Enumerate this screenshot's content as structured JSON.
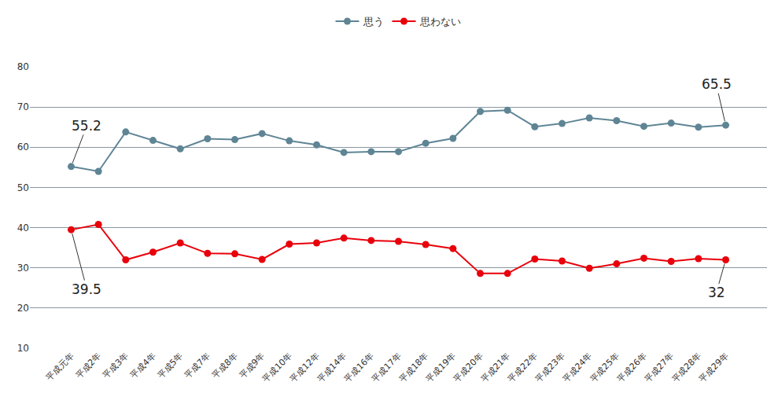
{
  "chart_data": {
    "type": "line",
    "categories": [
      "平成元年",
      "平成2年",
      "平成3年",
      "平成4年",
      "平成5年",
      "平成7年",
      "平成8年",
      "平成9年",
      "平成10年",
      "平成12年",
      "平成14年",
      "平成16年",
      "平成17年",
      "平成18年",
      "平成19年",
      "平成20年",
      "平成21年",
      "平成22年",
      "平成23年",
      "平成24年",
      "平成25年",
      "平成26年",
      "平成27年",
      "平成28年",
      "平成29年"
    ],
    "series": [
      {
        "name": "思う",
        "color": "#5f8595",
        "marker": "circle",
        "line_style": "solid",
        "values": [
          55.2,
          54.0,
          63.8,
          61.7,
          59.6,
          62.1,
          61.9,
          63.4,
          61.6,
          60.6,
          58.7,
          58.9,
          58.9,
          61.0,
          62.2,
          68.9,
          69.2,
          65.1,
          65.9,
          67.3,
          66.6,
          65.2,
          66.0,
          65.0,
          65.5
        ]
      },
      {
        "name": "思わない",
        "color": "#e8000b",
        "marker": "circle",
        "line_style": "solid",
        "values": [
          39.5,
          40.8,
          32.0,
          33.9,
          36.2,
          33.6,
          33.5,
          32.1,
          35.9,
          36.2,
          37.4,
          36.8,
          36.6,
          35.8,
          34.8,
          28.6,
          28.6,
          32.2,
          31.7,
          29.9,
          31.0,
          32.4,
          31.6,
          32.3,
          32.0
        ]
      }
    ],
    "annotations": [
      {
        "series": "思う",
        "category": "平成元年",
        "text": "55.2"
      },
      {
        "series": "思わない",
        "category": "平成元年",
        "text": "39.5"
      },
      {
        "series": "思う",
        "category": "平成29年",
        "text": "65.5"
      },
      {
        "series": "思わない",
        "category": "平成29年",
        "text": "32"
      }
    ],
    "ylim": [
      10,
      80
    ],
    "yticks": [
      10,
      20,
      30,
      40,
      50,
      60,
      70,
      80
    ],
    "grid": true,
    "legend": "top"
  }
}
